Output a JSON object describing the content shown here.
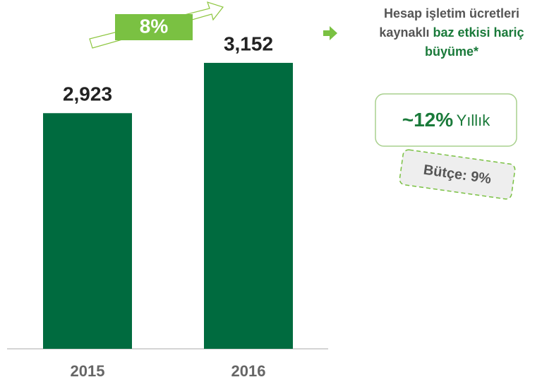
{
  "chart_data": {
    "type": "bar",
    "categories": [
      "2015",
      "2016"
    ],
    "values": [
      2923,
      3152
    ],
    "value_labels": [
      "2,923",
      "3,152"
    ],
    "color": "#006b3f",
    "ylim": [
      1850,
      3300
    ],
    "growth_label": "8%",
    "note": {
      "line1": "Hesap işletim ücretleri",
      "line2a": "kaynaklı",
      "line2b": "baz etkisi hariç",
      "line3": "büyüme*"
    },
    "yearly": {
      "value": "~12%",
      "label": "Yıllık"
    },
    "budget": "Bütçe: 9%"
  }
}
